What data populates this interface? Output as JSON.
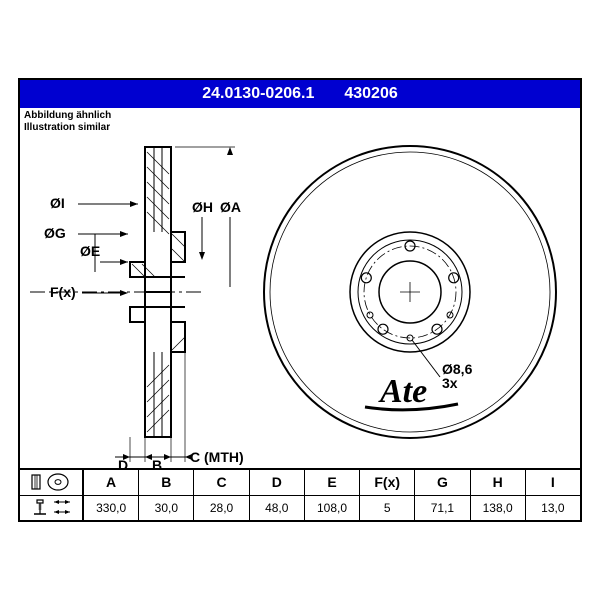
{
  "header": {
    "bg_color": "#0000d0",
    "part_number_1": "24.0130-0206.1",
    "part_number_2": "430206"
  },
  "subtitle": {
    "line1": "Abbildung ähnlich",
    "line2": "Illustration similar"
  },
  "side_view": {
    "labels": {
      "diaI": "ØI",
      "diaG": "ØG",
      "diaE": "ØE",
      "diaH": "ØH",
      "diaA": "ØA",
      "Fx": "F(x)",
      "D": "D",
      "B": "B",
      "C": "C (MTH)"
    }
  },
  "front_view": {
    "hole_label": "Ø8,6",
    "hole_count": "3x",
    "logo_text": "Ate"
  },
  "table": {
    "columns": [
      "A",
      "B",
      "C",
      "D",
      "E",
      "F(x)",
      "G",
      "H",
      "I"
    ],
    "values": [
      "330,0",
      "30,0",
      "28,0",
      "48,0",
      "108,0",
      "5",
      "71,1",
      "138,0",
      "13,0"
    ]
  },
  "colors": {
    "stroke": "#000000",
    "bg": "#ffffff",
    "header_text": "#ffffff"
  }
}
